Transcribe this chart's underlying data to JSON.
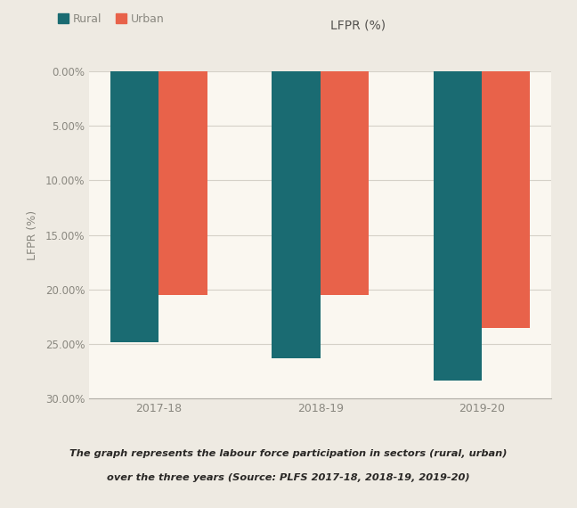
{
  "categories": [
    "2017-18",
    "2018-19",
    "2019-20"
  ],
  "rural_values": [
    24.8,
    26.3,
    28.3
  ],
  "urban_values": [
    20.5,
    20.5,
    23.5
  ],
  "rural_color": "#1a6b72",
  "urban_color": "#e8624a",
  "ylabel": "LFPR (%)",
  "chart_title": "LFPR (%)",
  "legend_rural": "Rural",
  "legend_urban": "Urban",
  "ylim_min": 0,
  "ylim_max": 30,
  "yticks": [
    0,
    5,
    10,
    15,
    20,
    25,
    30
  ],
  "caption_line1": "The graph represents the labour force participation in sectors (rural, urban)",
  "caption_line2": "over the three years (Source: PLFS 2017-18, 2018-19, 2019-20)",
  "bg_outer": "#eeeae2",
  "bg_inner": "#faf7f0",
  "bar_width": 0.3,
  "grid_color": "#d5d1c8",
  "axis_color": "#b0ada6",
  "label_color": "#8a8880",
  "title_color": "#555350",
  "caption_color": "#2a2826"
}
